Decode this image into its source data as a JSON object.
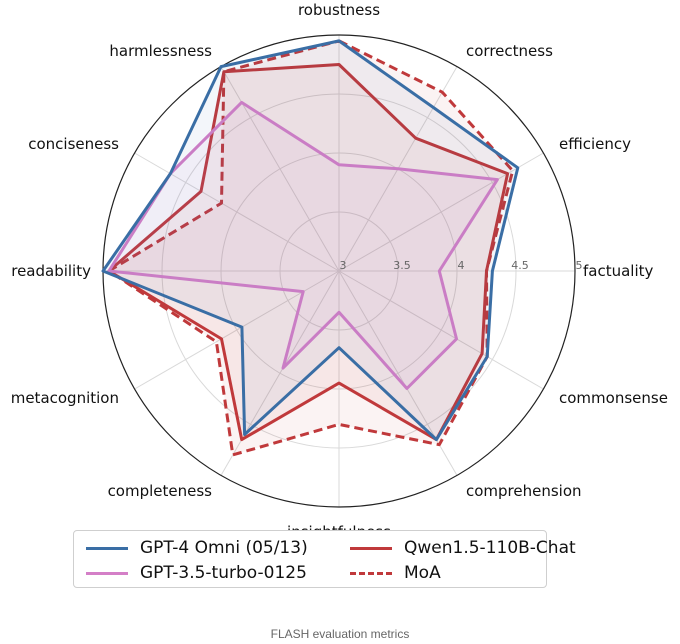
{
  "chart_data": {
    "type": "radar",
    "axes": [
      "robustness",
      "correctness",
      "efficiency",
      "factuality",
      "commonsense",
      "comprehension",
      "insightfulness",
      "completeness",
      "metacognition",
      "readability",
      "conciseness",
      "harmlessness"
    ],
    "rlim": [
      3,
      5
    ],
    "rticks": [
      "3",
      "3.5",
      "4",
      "4.5",
      "5"
    ],
    "grid": true,
    "legend_position": "bottom",
    "series": [
      {
        "name": "GPT-4 Omni (05/13)",
        "color": "#3a6ea5",
        "style": "solid",
        "values": [
          4.95,
          4.6,
          4.75,
          4.3,
          4.45,
          4.65,
          3.65,
          4.6,
          3.95,
          5.0,
          4.65,
          5.0
        ]
      },
      {
        "name": "GPT-3.5-turbo-0125",
        "color": "#d47fc7",
        "style": "solid",
        "values": [
          3.9,
          4.0,
          4.55,
          3.85,
          4.15,
          4.15,
          3.35,
          3.95,
          3.35,
          4.95,
          4.65,
          4.65
        ]
      },
      {
        "name": "Qwen1.5-110B-Chat",
        "color": "#c0393b",
        "style": "solid",
        "values": [
          4.75,
          4.3,
          4.65,
          4.25,
          4.4,
          4.65,
          3.95,
          4.65,
          4.15,
          4.95,
          4.35,
          4.95
        ]
      },
      {
        "name": "MoA",
        "color": "#c0393b",
        "style": "dashed",
        "values": [
          4.95,
          4.75,
          4.7,
          4.25,
          4.45,
          4.7,
          4.3,
          4.8,
          4.2,
          4.95,
          4.15,
          4.95
        ]
      }
    ]
  },
  "legend": {
    "gpt4o": "GPT-4 Omni (05/13)",
    "qwen": "Qwen1.5-110B-Chat",
    "gpt35": "GPT-3.5-turbo-0125",
    "moa": "MoA"
  },
  "caption": "FLASH evaluation metrics"
}
